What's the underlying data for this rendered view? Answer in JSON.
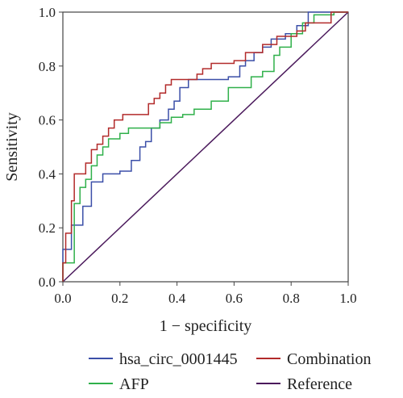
{
  "chart_data": {
    "type": "line",
    "title": "",
    "xlabel": "1 − specificity",
    "ylabel": "Sensitivity",
    "xlim": [
      0,
      1
    ],
    "ylim": [
      0,
      1
    ],
    "xticks": [
      "0.0",
      "0.2",
      "0.4",
      "0.6",
      "0.8",
      "1.0"
    ],
    "yticks": [
      "0.0",
      "0.2",
      "0.4",
      "0.6",
      "0.8",
      "1.0"
    ],
    "grid": false,
    "legend_position": "bottom",
    "series": [
      {
        "name": "hsa_circ_0001445",
        "color": "#3b4fa8",
        "step": true,
        "points": [
          [
            0,
            0
          ],
          [
            0,
            0.12
          ],
          [
            0.03,
            0.12
          ],
          [
            0.03,
            0.21
          ],
          [
            0.07,
            0.21
          ],
          [
            0.07,
            0.28
          ],
          [
            0.1,
            0.28
          ],
          [
            0.1,
            0.37
          ],
          [
            0.14,
            0.37
          ],
          [
            0.14,
            0.4
          ],
          [
            0.2,
            0.4
          ],
          [
            0.2,
            0.41
          ],
          [
            0.24,
            0.41
          ],
          [
            0.24,
            0.45
          ],
          [
            0.27,
            0.45
          ],
          [
            0.27,
            0.5
          ],
          [
            0.29,
            0.5
          ],
          [
            0.29,
            0.52
          ],
          [
            0.31,
            0.52
          ],
          [
            0.31,
            0.57
          ],
          [
            0.34,
            0.57
          ],
          [
            0.34,
            0.6
          ],
          [
            0.37,
            0.6
          ],
          [
            0.37,
            0.64
          ],
          [
            0.39,
            0.64
          ],
          [
            0.39,
            0.67
          ],
          [
            0.41,
            0.67
          ],
          [
            0.41,
            0.72
          ],
          [
            0.44,
            0.72
          ],
          [
            0.44,
            0.75
          ],
          [
            0.58,
            0.75
          ],
          [
            0.58,
            0.76
          ],
          [
            0.62,
            0.76
          ],
          [
            0.62,
            0.8
          ],
          [
            0.64,
            0.8
          ],
          [
            0.64,
            0.82
          ],
          [
            0.67,
            0.82
          ],
          [
            0.67,
            0.85
          ],
          [
            0.7,
            0.85
          ],
          [
            0.7,
            0.87
          ],
          [
            0.73,
            0.87
          ],
          [
            0.73,
            0.9
          ],
          [
            0.78,
            0.9
          ],
          [
            0.78,
            0.92
          ],
          [
            0.82,
            0.92
          ],
          [
            0.82,
            0.95
          ],
          [
            0.86,
            0.95
          ],
          [
            0.86,
            1.0
          ],
          [
            1,
            1
          ]
        ]
      },
      {
        "name": "Combination",
        "color": "#b22a2a",
        "step": true,
        "points": [
          [
            0,
            0
          ],
          [
            0,
            0.07
          ],
          [
            0.01,
            0.07
          ],
          [
            0.01,
            0.18
          ],
          [
            0.03,
            0.18
          ],
          [
            0.03,
            0.3
          ],
          [
            0.04,
            0.3
          ],
          [
            0.04,
            0.4
          ],
          [
            0.08,
            0.4
          ],
          [
            0.08,
            0.44
          ],
          [
            0.1,
            0.44
          ],
          [
            0.1,
            0.49
          ],
          [
            0.12,
            0.49
          ],
          [
            0.12,
            0.51
          ],
          [
            0.14,
            0.51
          ],
          [
            0.14,
            0.54
          ],
          [
            0.16,
            0.54
          ],
          [
            0.16,
            0.57
          ],
          [
            0.18,
            0.57
          ],
          [
            0.18,
            0.6
          ],
          [
            0.21,
            0.6
          ],
          [
            0.21,
            0.62
          ],
          [
            0.3,
            0.62
          ],
          [
            0.3,
            0.66
          ],
          [
            0.32,
            0.66
          ],
          [
            0.32,
            0.68
          ],
          [
            0.34,
            0.68
          ],
          [
            0.34,
            0.7
          ],
          [
            0.36,
            0.7
          ],
          [
            0.36,
            0.73
          ],
          [
            0.38,
            0.73
          ],
          [
            0.38,
            0.75
          ],
          [
            0.47,
            0.75
          ],
          [
            0.47,
            0.77
          ],
          [
            0.49,
            0.77
          ],
          [
            0.49,
            0.79
          ],
          [
            0.52,
            0.79
          ],
          [
            0.52,
            0.81
          ],
          [
            0.6,
            0.81
          ],
          [
            0.6,
            0.82
          ],
          [
            0.64,
            0.82
          ],
          [
            0.64,
            0.85
          ],
          [
            0.7,
            0.85
          ],
          [
            0.7,
            0.88
          ],
          [
            0.75,
            0.88
          ],
          [
            0.75,
            0.91
          ],
          [
            0.82,
            0.91
          ],
          [
            0.82,
            0.93
          ],
          [
            0.85,
            0.93
          ],
          [
            0.85,
            0.96
          ],
          [
            0.94,
            0.96
          ],
          [
            0.94,
            1.0
          ],
          [
            1,
            1
          ]
        ]
      },
      {
        "name": "AFP",
        "color": "#2fb04a",
        "step": true,
        "points": [
          [
            0,
            0
          ],
          [
            0,
            0.07
          ],
          [
            0.04,
            0.07
          ],
          [
            0.04,
            0.29
          ],
          [
            0.06,
            0.29
          ],
          [
            0.06,
            0.35
          ],
          [
            0.08,
            0.35
          ],
          [
            0.08,
            0.38
          ],
          [
            0.1,
            0.38
          ],
          [
            0.1,
            0.43
          ],
          [
            0.12,
            0.43
          ],
          [
            0.12,
            0.47
          ],
          [
            0.14,
            0.47
          ],
          [
            0.14,
            0.5
          ],
          [
            0.16,
            0.5
          ],
          [
            0.16,
            0.53
          ],
          [
            0.2,
            0.53
          ],
          [
            0.2,
            0.55
          ],
          [
            0.23,
            0.55
          ],
          [
            0.23,
            0.57
          ],
          [
            0.34,
            0.57
          ],
          [
            0.34,
            0.59
          ],
          [
            0.38,
            0.59
          ],
          [
            0.38,
            0.61
          ],
          [
            0.42,
            0.61
          ],
          [
            0.42,
            0.62
          ],
          [
            0.46,
            0.62
          ],
          [
            0.46,
            0.64
          ],
          [
            0.52,
            0.64
          ],
          [
            0.52,
            0.67
          ],
          [
            0.58,
            0.67
          ],
          [
            0.58,
            0.72
          ],
          [
            0.66,
            0.72
          ],
          [
            0.66,
            0.76
          ],
          [
            0.7,
            0.76
          ],
          [
            0.7,
            0.78
          ],
          [
            0.74,
            0.78
          ],
          [
            0.74,
            0.84
          ],
          [
            0.76,
            0.84
          ],
          [
            0.76,
            0.87
          ],
          [
            0.8,
            0.87
          ],
          [
            0.8,
            0.92
          ],
          [
            0.84,
            0.92
          ],
          [
            0.84,
            0.96
          ],
          [
            0.88,
            0.96
          ],
          [
            0.88,
            0.99
          ],
          [
            0.95,
            0.99
          ],
          [
            0.95,
            1.0
          ],
          [
            1,
            1
          ]
        ]
      },
      {
        "name": "Reference",
        "color": "#4b1a5c",
        "step": false,
        "points": [
          [
            0,
            0
          ],
          [
            1,
            1
          ]
        ]
      }
    ]
  }
}
